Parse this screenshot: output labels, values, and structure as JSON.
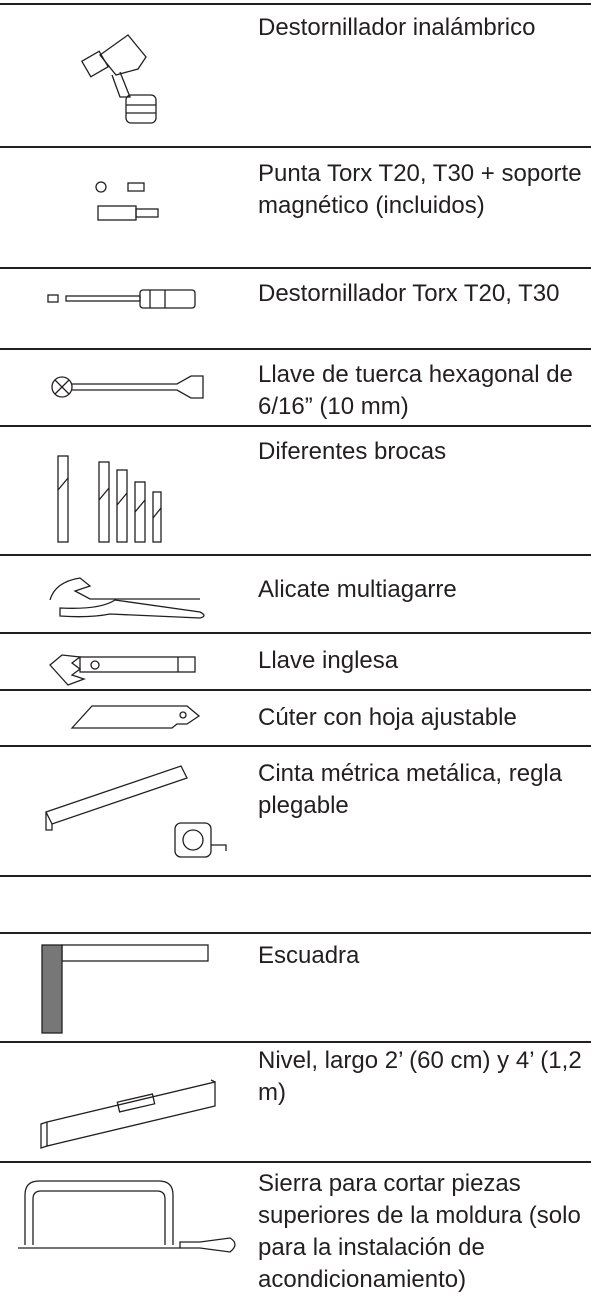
{
  "rows": [
    {
      "text": "Destornillador inalámbrico"
    },
    {
      "text": "Punta Torx T20, T30 + soporte magnético (incluidos)"
    },
    {
      "text": "Destornillador Torx T20, T30"
    },
    {
      "text": "Llave de tuerca hexagonal de 6/16” (10 mm)"
    },
    {
      "text": "Diferentes brocas"
    },
    {
      "text": "Alicate multiagarre"
    },
    {
      "text": "Llave inglesa"
    },
    {
      "text": "Cúter con hoja ajustable"
    },
    {
      "text": "Cinta métrica metálica, regla plegable"
    },
    {
      "text": "Escuadra"
    },
    {
      "text": "Nivel, largo 2’ (60 cm) y 4’ (1,2 m)"
    },
    {
      "text": "Sierra para cortar piezas superiores de la moldura (solo para la instalación de acondicionamiento)"
    }
  ]
}
